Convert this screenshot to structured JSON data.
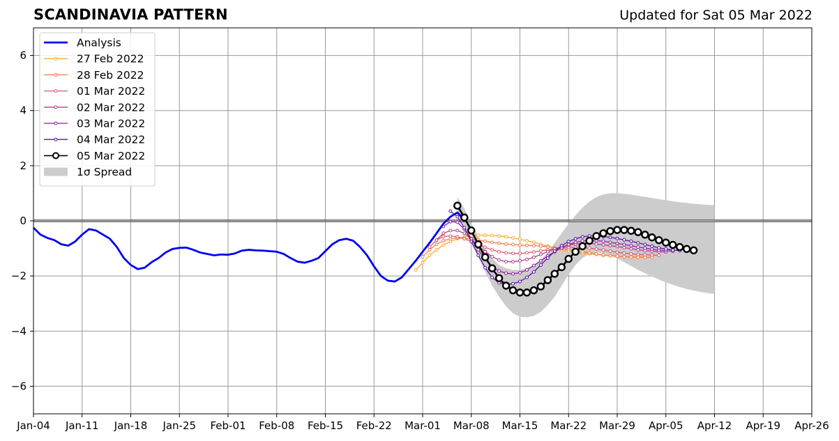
{
  "header": {
    "title": "SCANDINAVIA PATTERN",
    "subtitle": "Updated for Sat 05 Mar 2022"
  },
  "chart_data": {
    "type": "line",
    "title": "SCANDINAVIA PATTERN",
    "subtitle": "Updated for Sat 05 Mar 2022",
    "xlabel": "",
    "ylabel": "",
    "x_axis": {
      "start": "2022-01-04",
      "end": "2022-04-26",
      "ticks": [
        {
          "date": "2022-01-04",
          "label": "Jan-04"
        },
        {
          "date": "2022-01-11",
          "label": "Jan-11"
        },
        {
          "date": "2022-01-18",
          "label": "Jan-18"
        },
        {
          "date": "2022-01-25",
          "label": "Jan-25"
        },
        {
          "date": "2022-02-01",
          "label": "Feb-01"
        },
        {
          "date": "2022-02-08",
          "label": "Feb-08"
        },
        {
          "date": "2022-02-15",
          "label": "Feb-15"
        },
        {
          "date": "2022-02-22",
          "label": "Feb-22"
        },
        {
          "date": "2022-03-01",
          "label": "Mar-01"
        },
        {
          "date": "2022-03-08",
          "label": "Mar-08"
        },
        {
          "date": "2022-03-15",
          "label": "Mar-15"
        },
        {
          "date": "2022-03-22",
          "label": "Mar-22"
        },
        {
          "date": "2022-03-29",
          "label": "Mar-29"
        },
        {
          "date": "2022-04-05",
          "label": "Apr-05"
        },
        {
          "date": "2022-04-12",
          "label": "Apr-12"
        },
        {
          "date": "2022-04-19",
          "label": "Apr-19"
        },
        {
          "date": "2022-04-26",
          "label": "Apr-26"
        }
      ]
    },
    "y_axis": {
      "ylim": [
        -7,
        7
      ],
      "ticks": [
        {
          "value": 6,
          "label": "6"
        },
        {
          "value": 4,
          "label": "4"
        },
        {
          "value": 2,
          "label": "2"
        },
        {
          "value": 0,
          "label": "0"
        },
        {
          "value": -2,
          "label": "−2"
        },
        {
          "value": -4,
          "label": "−4"
        },
        {
          "value": -6,
          "label": "−6"
        }
      ]
    },
    "grid": true,
    "zero_line": true,
    "legend_position": "top-left",
    "analysis": {
      "name": "Analysis",
      "color": "#0000ee",
      "start_date": "2022-01-04",
      "values": [
        -0.25,
        -0.5,
        -0.62,
        -0.7,
        -0.85,
        -0.9,
        -0.75,
        -0.5,
        -0.3,
        -0.35,
        -0.5,
        -0.65,
        -0.95,
        -1.35,
        -1.6,
        -1.75,
        -1.7,
        -1.5,
        -1.35,
        -1.15,
        -1.02,
        -0.98,
        -0.97,
        -1.05,
        -1.15,
        -1.2,
        -1.25,
        -1.22,
        -1.23,
        -1.18,
        -1.08,
        -1.05,
        -1.07,
        -1.08,
        -1.1,
        -1.12,
        -1.2,
        -1.35,
        -1.48,
        -1.52,
        -1.45,
        -1.35,
        -1.1,
        -0.85,
        -0.7,
        -0.65,
        -0.72,
        -0.95,
        -1.25,
        -1.65,
        -2.0,
        -2.17,
        -2.2,
        -2.05,
        -1.75,
        -1.45,
        -1.12,
        -0.8,
        -0.45,
        -0.1,
        0.15,
        0.3,
        0.05
      ]
    },
    "forecasts": [
      {
        "name": "27 Feb 2022",
        "color": "#ffa928",
        "start_date": "2022-02-28",
        "values": [
          -1.78,
          -1.52,
          -1.25,
          -1.05,
          -0.88,
          -0.75,
          -0.65,
          -0.58,
          -0.53,
          -0.52,
          -0.52,
          -0.53,
          -0.55,
          -0.58,
          -0.62,
          -0.67,
          -0.72,
          -0.78,
          -0.85,
          -0.92,
          -0.99,
          -1.05,
          -1.1,
          -1.15,
          -1.18,
          -1.2,
          -1.22,
          -1.25,
          -1.27,
          -1.28,
          -1.3,
          -1.3,
          -1.3,
          -1.3
        ]
      },
      {
        "name": "28 Feb 2022",
        "color": "#f57a47",
        "start_date": "2022-03-01",
        "values": [
          -1.3,
          -1.05,
          -0.85,
          -0.72,
          -0.65,
          -0.62,
          -0.63,
          -0.66,
          -0.7,
          -0.74,
          -0.78,
          -0.81,
          -0.84,
          -0.86,
          -0.88,
          -0.89,
          -0.9,
          -0.92,
          -0.94,
          -0.97,
          -1.0,
          -1.04,
          -1.08,
          -1.12,
          -1.16,
          -1.2,
          -1.23,
          -1.26,
          -1.28,
          -1.3,
          -1.31,
          -1.32,
          -1.32,
          -1.32
        ]
      },
      {
        "name": "01 Mar 2022",
        "color": "#dc5a6c",
        "start_date": "2022-03-02",
        "values": [
          -0.95,
          -0.7,
          -0.57,
          -0.55,
          -0.58,
          -0.65,
          -0.75,
          -0.86,
          -0.96,
          -1.05,
          -1.12,
          -1.16,
          -1.18,
          -1.18,
          -1.16,
          -1.13,
          -1.09,
          -1.05,
          -1.01,
          -0.98,
          -0.96,
          -0.96,
          -0.97,
          -0.99,
          -1.02,
          -1.06,
          -1.1,
          -1.14,
          -1.17,
          -1.2,
          -1.22,
          -1.23,
          -1.24,
          -1.25
        ]
      },
      {
        "name": "02 Mar 2022",
        "color": "#b43e8e",
        "start_date": "2022-03-03",
        "values": [
          -0.7,
          -0.45,
          -0.35,
          -0.35,
          -0.45,
          -0.65,
          -0.9,
          -1.12,
          -1.3,
          -1.42,
          -1.48,
          -1.48,
          -1.45,
          -1.4,
          -1.32,
          -1.22,
          -1.12,
          -1.02,
          -0.94,
          -0.88,
          -0.84,
          -0.82,
          -0.82,
          -0.84,
          -0.87,
          -0.9,
          -0.93,
          -0.97,
          -1.01,
          -1.05,
          -1.08,
          -1.1,
          -1.12,
          -1.13
        ]
      },
      {
        "name": "03 Mar 2022",
        "color": "#8c1fa0",
        "start_date": "2022-03-04",
        "values": [
          -0.2,
          -0.03,
          -0.05,
          -0.3,
          -0.65,
          -1.05,
          -1.4,
          -1.65,
          -1.82,
          -1.9,
          -1.92,
          -1.88,
          -1.78,
          -1.62,
          -1.45,
          -1.28,
          -1.12,
          -0.98,
          -0.86,
          -0.78,
          -0.73,
          -0.72,
          -0.72,
          -0.74,
          -0.78,
          -0.82,
          -0.86,
          -0.9,
          -0.95,
          -0.99,
          -1.03,
          -1.06,
          -1.08,
          -1.1
        ]
      },
      {
        "name": "04 Mar 2022",
        "color": "#5b0fa8",
        "start_date": "2022-03-05",
        "values": [
          0.35,
          0.15,
          -0.25,
          -0.75,
          -1.25,
          -1.7,
          -2.05,
          -2.25,
          -2.3,
          -2.28,
          -2.2,
          -2.05,
          -1.85,
          -1.6,
          -1.35,
          -1.1,
          -0.9,
          -0.75,
          -0.65,
          -0.58,
          -0.55,
          -0.55,
          -0.57,
          -0.6,
          -0.64,
          -0.69,
          -0.74,
          -0.8,
          -0.86,
          -0.92,
          -0.98,
          -1.02,
          -1.06,
          -1.08
        ]
      },
      {
        "name": "05 Mar 2022",
        "color": "#000000",
        "marker_fill": "#ffffff",
        "start_date": "2022-03-06",
        "values": [
          0.55,
          0.12,
          -0.35,
          -0.85,
          -1.32,
          -1.72,
          -2.08,
          -2.35,
          -2.52,
          -2.6,
          -2.6,
          -2.52,
          -2.38,
          -2.15,
          -1.92,
          -1.68,
          -1.38,
          -1.12,
          -0.92,
          -0.72,
          -0.55,
          -0.45,
          -0.37,
          -0.33,
          -0.33,
          -0.36,
          -0.41,
          -0.5,
          -0.6,
          -0.7,
          -0.79,
          -0.87,
          -0.95,
          -1.02,
          -1.07
        ]
      }
    ],
    "spread": {
      "name": "1σ Spread",
      "color": "#cccccc",
      "start_date": "2022-03-06",
      "upper": [
        0.85,
        0.45,
        -0.1,
        -0.55,
        -1.0,
        -1.35,
        -1.6,
        -1.72,
        -1.78,
        -1.78,
        -1.72,
        -1.6,
        -1.4,
        -1.15,
        -0.8,
        -0.45,
        -0.1,
        0.2,
        0.48,
        0.7,
        0.86,
        0.96,
        1.0,
        1.0,
        0.98,
        0.95,
        0.91,
        0.87,
        0.83,
        0.79,
        0.75,
        0.71,
        0.68,
        0.65,
        0.62,
        0.6,
        0.58,
        0.57
      ],
      "lower": [
        0.25,
        -0.2,
        -0.75,
        -1.3,
        -1.85,
        -2.35,
        -2.75,
        -3.1,
        -3.35,
        -3.48,
        -3.5,
        -3.45,
        -3.3,
        -3.05,
        -2.75,
        -2.35,
        -1.95,
        -1.6,
        -1.35,
        -1.2,
        -1.15,
        -1.17,
        -1.25,
        -1.36,
        -1.5,
        -1.64,
        -1.78,
        -1.9,
        -2.02,
        -2.13,
        -2.23,
        -2.32,
        -2.4,
        -2.47,
        -2.53,
        -2.58,
        -2.62,
        -2.65
      ]
    },
    "legend": [
      {
        "label": "Analysis",
        "kind": "line",
        "color": "#0000ee"
      },
      {
        "label": "27 Feb 2022",
        "kind": "marker-line",
        "color": "#ffa928"
      },
      {
        "label": "28 Feb 2022",
        "kind": "marker-line",
        "color": "#f57a47"
      },
      {
        "label": "01 Mar 2022",
        "kind": "marker-line",
        "color": "#dc5a6c"
      },
      {
        "label": "02 Mar 2022",
        "kind": "marker-line",
        "color": "#b43e8e"
      },
      {
        "label": "03 Mar 2022",
        "kind": "marker-line",
        "color": "#8c1fa0"
      },
      {
        "label": "04 Mar 2022",
        "kind": "marker-line",
        "color": "#5b0fa8"
      },
      {
        "label": "05 Mar 2022",
        "kind": "big-marker-line",
        "color": "#000000"
      },
      {
        "label": "1σ Spread",
        "kind": "patch",
        "color": "#cccccc"
      }
    ]
  }
}
